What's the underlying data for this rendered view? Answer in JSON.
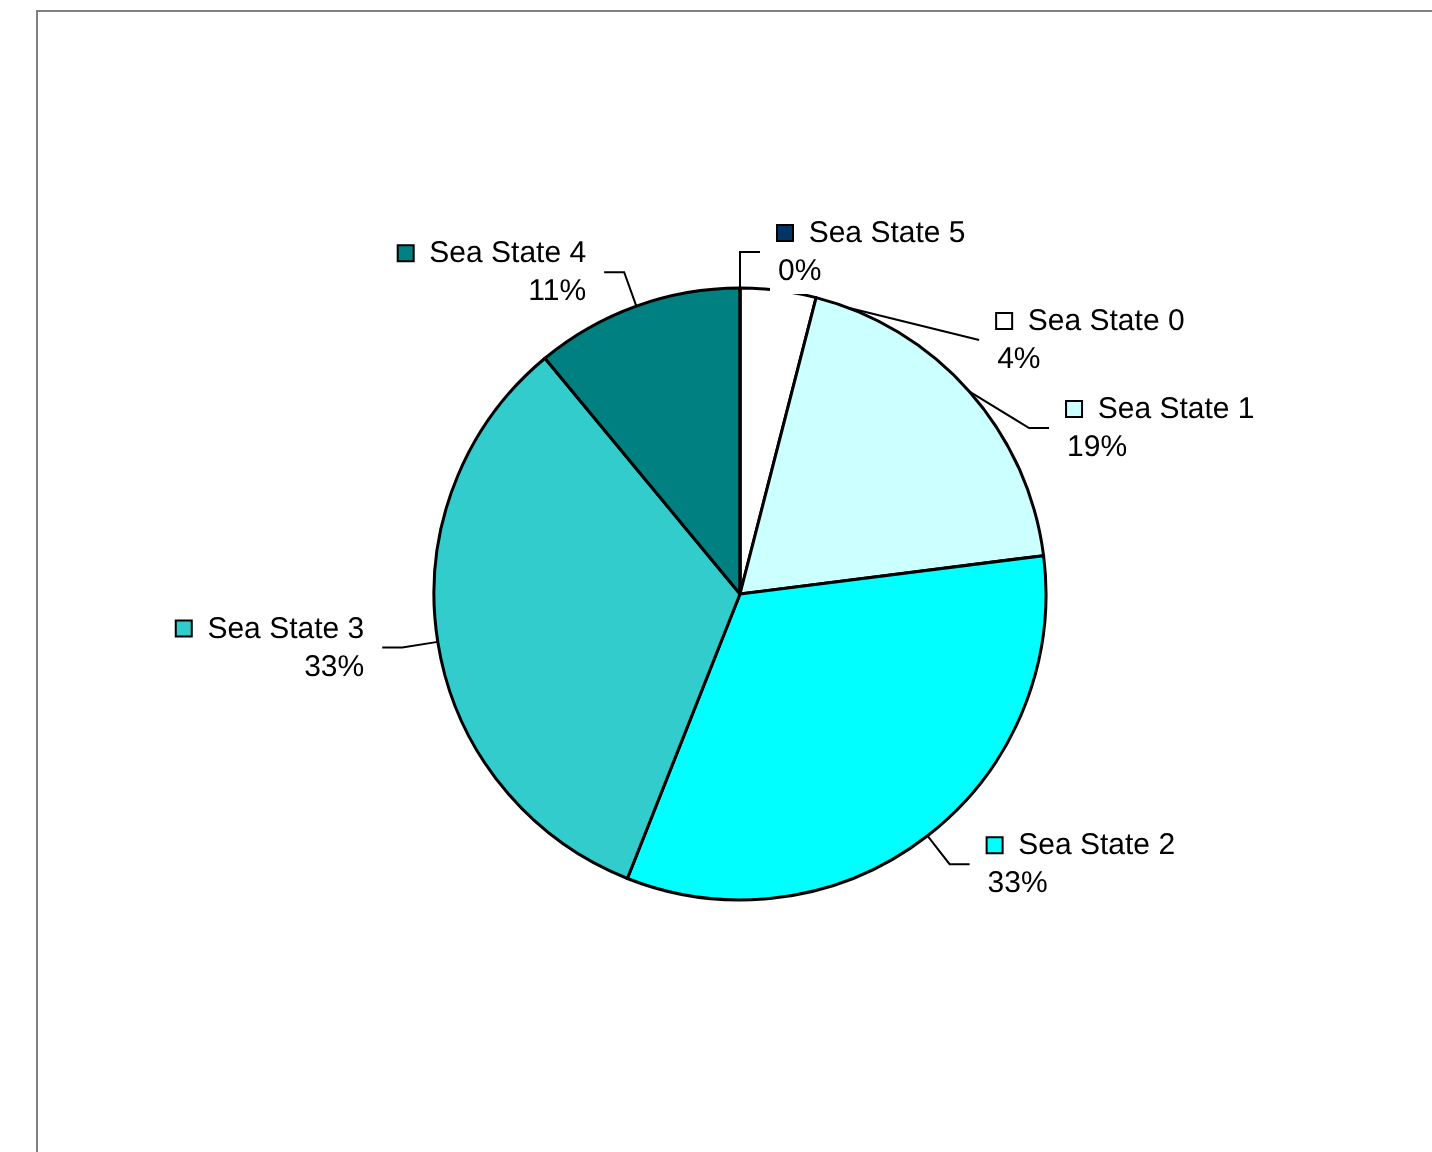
{
  "chart_data": {
    "type": "pie",
    "categories": [
      "Sea State 0",
      "Sea State 1",
      "Sea State 2",
      "Sea State 3",
      "Sea State 4",
      "Sea State 5"
    ],
    "values": [
      4,
      19,
      33,
      33,
      11,
      0
    ],
    "value_labels": [
      "4%",
      "19%",
      "33%",
      "33%",
      "11%",
      "0%"
    ],
    "colors": [
      "#ffffff",
      "#ccffff",
      "#00ffff",
      "#33cccc",
      "#008080",
      "#003366"
    ],
    "legend": "right"
  }
}
